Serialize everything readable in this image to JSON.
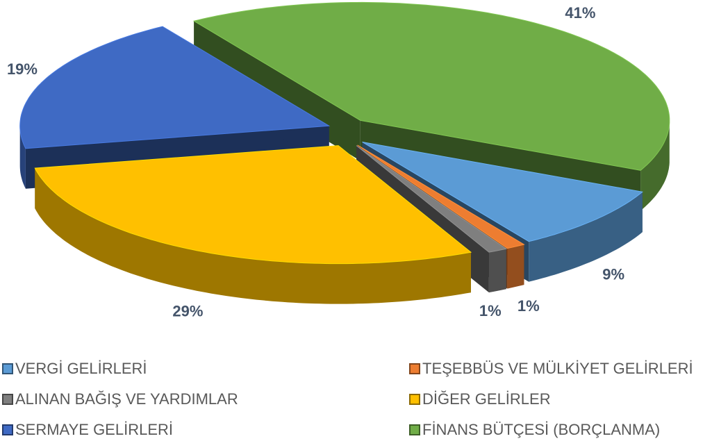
{
  "chart_data": {
    "type": "pie",
    "categories": [
      "VERGİ GELİRLERİ",
      "TEŞEBBÜS VE MÜLKİYET GELİRLERİ",
      "ALINAN BAĞIŞ VE YARDIMLAR",
      "DİĞER GELİRLER",
      "SERMAYE GELİRLERİ",
      "FİNANS BÜTÇESİ (BORÇLANMA)"
    ],
    "values": [
      9,
      1,
      1,
      29,
      19,
      41
    ],
    "value_labels": [
      "9%",
      "1%",
      "1%",
      "29%",
      "19%",
      "41%"
    ],
    "colors": [
      "#5b9bd5",
      "#ed7d31",
      "#7f7f7f",
      "#ffc000",
      "#3f6ac4",
      "#70ad47"
    ],
    "legend": "bottom"
  }
}
